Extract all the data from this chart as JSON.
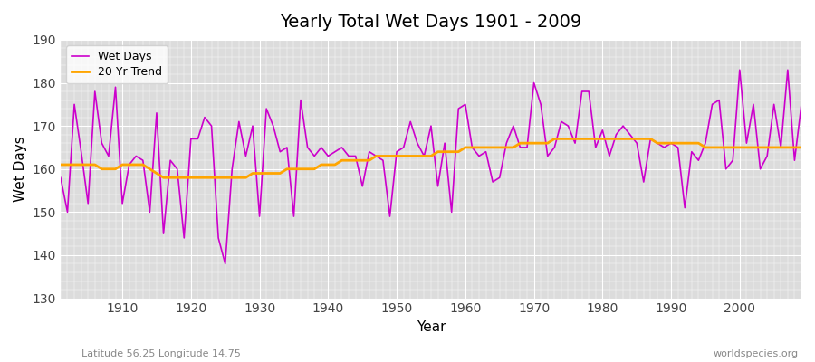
{
  "title": "Yearly Total Wet Days 1901 - 2009",
  "xlabel": "Year",
  "ylabel": "Wet Days",
  "footnote_left": "Latitude 56.25 Longitude 14.75",
  "footnote_right": "worldspecies.org",
  "ylim": [
    130,
    190
  ],
  "yticks": [
    130,
    140,
    150,
    160,
    170,
    180,
    190
  ],
  "fig_bg_color": "#ffffff",
  "plot_bg_color": "#dcdcdc",
  "wet_days_color": "#cc00cc",
  "trend_color": "#ffa500",
  "wet_days": [
    158,
    150,
    175,
    164,
    152,
    178,
    166,
    163,
    179,
    152,
    161,
    163,
    162,
    150,
    173,
    145,
    162,
    160,
    144,
    167,
    167,
    172,
    170,
    144,
    138,
    160,
    171,
    163,
    170,
    149,
    174,
    170,
    164,
    165,
    149,
    176,
    165,
    163,
    165,
    163,
    164,
    165,
    163,
    163,
    156,
    164,
    163,
    162,
    149,
    164,
    165,
    171,
    166,
    163,
    170,
    156,
    166,
    150,
    174,
    175,
    165,
    163,
    164,
    157,
    158,
    166,
    170,
    165,
    165,
    180,
    175,
    163,
    165,
    171,
    170,
    166,
    178,
    178,
    165,
    169,
    163,
    168,
    170,
    168,
    166,
    157,
    167,
    166,
    165,
    166,
    165,
    151,
    164,
    162,
    166,
    175,
    176,
    160,
    162,
    183,
    166,
    175,
    160,
    163,
    175,
    165,
    183,
    162,
    175
  ],
  "trend": [
    161,
    161,
    161,
    161,
    161,
    161,
    160,
    160,
    160,
    161,
    161,
    161,
    161,
    160,
    159,
    158,
    158,
    158,
    158,
    158,
    158,
    158,
    158,
    158,
    158,
    158,
    158,
    158,
    159,
    159,
    159,
    159,
    159,
    160,
    160,
    160,
    160,
    160,
    161,
    161,
    161,
    162,
    162,
    162,
    162,
    162,
    163,
    163,
    163,
    163,
    163,
    163,
    163,
    163,
    163,
    164,
    164,
    164,
    164,
    165,
    165,
    165,
    165,
    165,
    165,
    165,
    165,
    166,
    166,
    166,
    166,
    166,
    167,
    167,
    167,
    167,
    167,
    167,
    167,
    167,
    167,
    167,
    167,
    167,
    167,
    167,
    167,
    166,
    166,
    166,
    166,
    166,
    166,
    166,
    165,
    165,
    165,
    165,
    165,
    165,
    165,
    165,
    165,
    165,
    165,
    165,
    165,
    165,
    165
  ]
}
